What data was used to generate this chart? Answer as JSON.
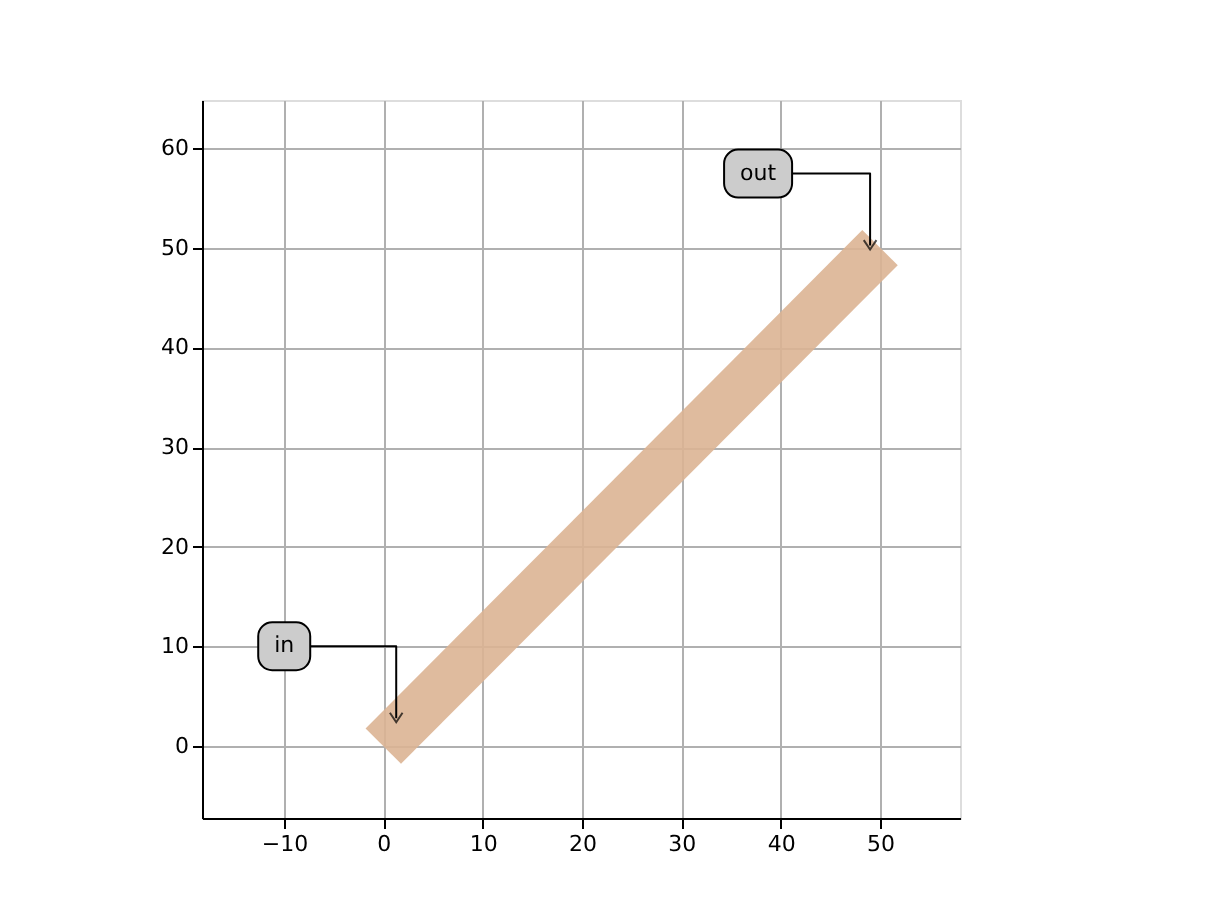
{
  "chart_data": {
    "type": "line",
    "x": [
      0,
      50
    ],
    "series": [
      {
        "color": "#dcb493",
        "values": [
          0,
          50
        ]
      }
    ],
    "xlim": [
      -18.25,
      58.05
    ],
    "ylim": [
      -7.2,
      64.8
    ],
    "xticks": [
      -10,
      0,
      10,
      20,
      30,
      40,
      50
    ],
    "yticks": [
      0,
      10,
      20,
      30,
      40,
      50,
      60
    ],
    "grid": true,
    "line_style": "solid",
    "marker": "none",
    "annotations": [
      {
        "text": "in",
        "x": 1.3,
        "y": 1.8
      },
      {
        "text": "out",
        "x": 49,
        "y": 49.2
      }
    ]
  }
}
